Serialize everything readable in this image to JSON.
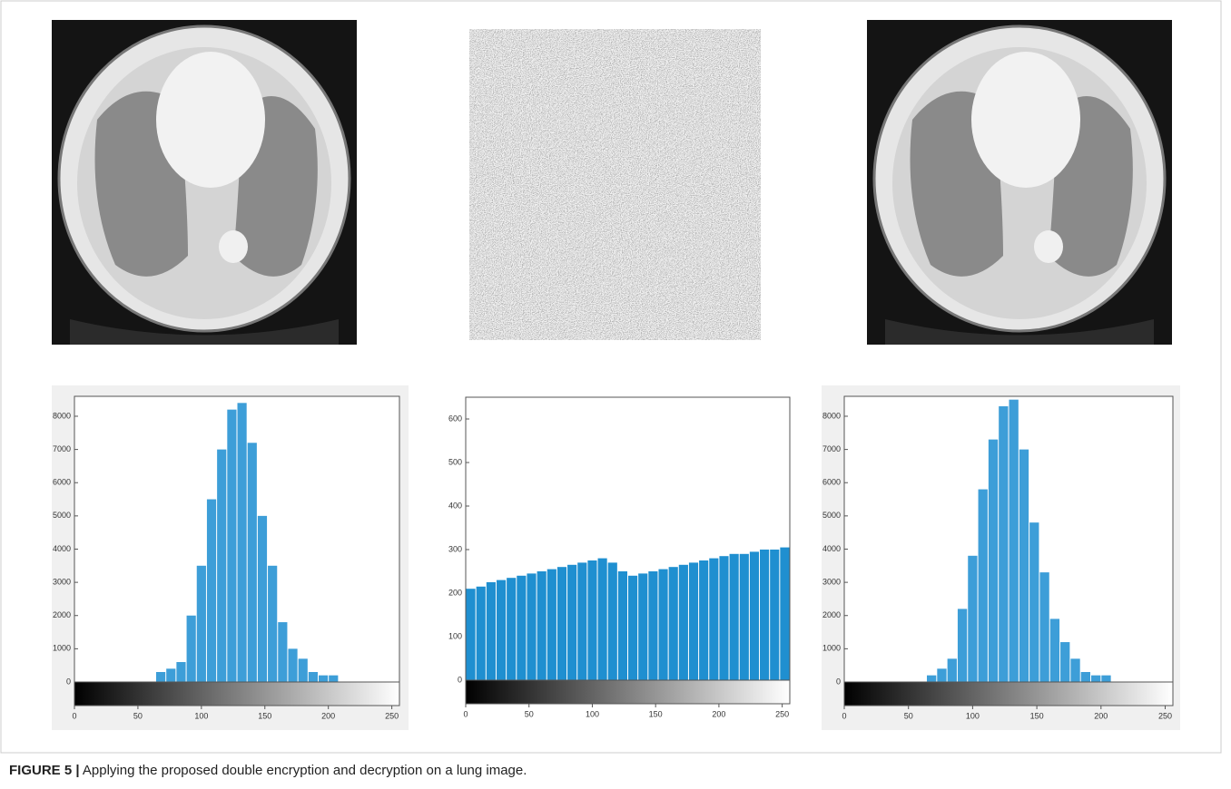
{
  "chart_data": [
    {
      "type": "histogram",
      "color": "#3d9ed8",
      "bins": [
        0,
        8,
        16,
        24,
        32,
        40,
        48,
        56,
        64,
        72,
        80,
        88,
        96,
        104,
        112,
        120,
        128,
        136,
        144,
        152,
        160,
        168,
        176,
        184,
        192,
        200,
        208,
        216,
        224,
        232,
        240,
        248,
        256
      ],
      "values": [
        0,
        0,
        0,
        0,
        0,
        0,
        0,
        0,
        300,
        400,
        600,
        2000,
        3500,
        5500,
        7000,
        8200,
        8400,
        7200,
        5000,
        3500,
        1800,
        1000,
        700,
        300,
        200,
        200,
        0,
        0,
        0,
        0,
        0,
        0
      ],
      "xlim": [
        0,
        256
      ],
      "ylim": [
        0,
        8600
      ],
      "xticks": [
        0,
        50,
        100,
        150,
        200,
        250
      ],
      "yticks": [
        0,
        1000,
        2000,
        3000,
        4000,
        5000,
        6000,
        7000,
        8000
      ]
    },
    {
      "type": "histogram",
      "color": "#1f8fd0",
      "bins": [
        0,
        8,
        16,
        24,
        32,
        40,
        48,
        56,
        64,
        72,
        80,
        88,
        96,
        104,
        112,
        120,
        128,
        136,
        144,
        152,
        160,
        168,
        176,
        184,
        192,
        200,
        208,
        216,
        224,
        232,
        240,
        248,
        256
      ],
      "values": [
        210,
        215,
        225,
        230,
        235,
        240,
        245,
        250,
        255,
        260,
        265,
        270,
        275,
        280,
        270,
        250,
        240,
        245,
        250,
        255,
        260,
        265,
        270,
        275,
        280,
        285,
        290,
        290,
        295,
        300,
        300,
        305
      ],
      "xlim": [
        0,
        256
      ],
      "ylim": [
        0,
        650
      ],
      "xticks": [
        0,
        50,
        100,
        150,
        200,
        250
      ],
      "yticks": [
        0,
        100,
        200,
        300,
        400,
        500,
        600
      ]
    },
    {
      "type": "histogram",
      "color": "#3d9ed8",
      "bins": [
        0,
        8,
        16,
        24,
        32,
        40,
        48,
        56,
        64,
        72,
        80,
        88,
        96,
        104,
        112,
        120,
        128,
        136,
        144,
        152,
        160,
        168,
        176,
        184,
        192,
        200,
        208,
        216,
        224,
        232,
        240,
        248,
        256
      ],
      "values": [
        0,
        0,
        0,
        0,
        0,
        0,
        0,
        0,
        200,
        400,
        700,
        2200,
        3800,
        5800,
        7300,
        8300,
        8500,
        7000,
        4800,
        3300,
        1900,
        1200,
        700,
        300,
        200,
        200,
        0,
        0,
        0,
        0,
        0,
        0
      ],
      "xlim": [
        0,
        256
      ],
      "ylim": [
        0,
        8600
      ],
      "xticks": [
        0,
        50,
        100,
        150,
        200,
        250
      ],
      "yticks": [
        0,
        1000,
        2000,
        3000,
        4000,
        5000,
        6000,
        7000,
        8000
      ]
    }
  ],
  "caption": {
    "label": "FIGURE 5 |",
    "text": "Applying the proposed double encryption and decryption on a lung image."
  }
}
